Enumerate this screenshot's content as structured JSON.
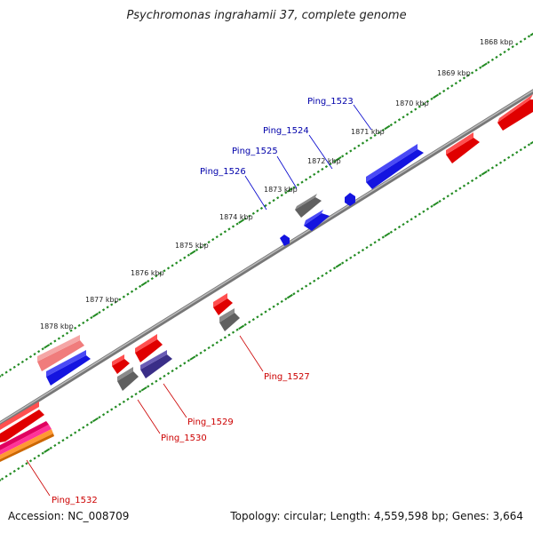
{
  "title": "Psychromonas ingrahamii 37, complete genome",
  "footer": {
    "accession": "Accession: NC_008709",
    "summary": "Topology: circular; Length: 4,559,598 bp; Genes: 3,664"
  },
  "colors": {
    "forward_gene": "#ee0000",
    "reverse_gene": "#1010e0",
    "gray_gene": "#666666",
    "pink_gene": "#f08080",
    "purple_gene": "#443388",
    "backbone": "#888888",
    "tick": "#228b22",
    "label_forward": "#cc0000",
    "label_reverse": "#0000aa"
  },
  "tick_labels": [
    "1868 kbp",
    "1869 kbp",
    "1870 kbp",
    "1871 kbp",
    "1872 kbp",
    "1873 kbp",
    "1874 kbp",
    "1875 kbp",
    "1876 kbp",
    "1877 kbp",
    "1878 kbp"
  ],
  "gene_labels": {
    "reverse": [
      "Ping_1523",
      "Ping_1524",
      "Ping_1525",
      "Ping_1526"
    ],
    "forward": [
      "Ping_1527",
      "Ping_1529",
      "Ping_1530",
      "Ping_1532"
    ]
  }
}
